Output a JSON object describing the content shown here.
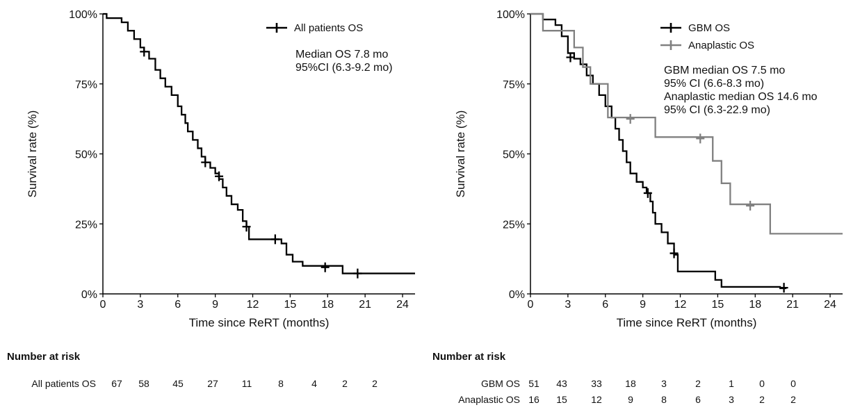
{
  "chart_data": [
    {
      "type": "line",
      "ylabel": "Survival rate (%)",
      "xlabel": "Time since ReRT (months)",
      "xlim": [
        0,
        25
      ],
      "ylim": [
        0,
        100
      ],
      "x_ticks": [
        "0",
        "3",
        "6",
        "9",
        "12",
        "15",
        "18",
        "21",
        "24"
      ],
      "y_ticks": [
        "0%",
        "25%",
        "50%",
        "75%",
        "100%"
      ],
      "legend_position": "top-right",
      "annotation": [
        "Median OS 7.8 mo",
        "95%CI (6.3-9.2 mo)"
      ],
      "series": [
        {
          "name": "All patients OS",
          "color": "#000000",
          "step_points": [
            [
              0,
              100
            ],
            [
              0.3,
              98.5
            ],
            [
              1.5,
              97
            ],
            [
              2,
              94
            ],
            [
              2.5,
              91
            ],
            [
              3,
              88
            ],
            [
              3.3,
              86.5
            ],
            [
              3.7,
              84
            ],
            [
              4.2,
              80
            ],
            [
              4.6,
              77
            ],
            [
              5,
              74
            ],
            [
              5.5,
              71
            ],
            [
              6,
              67
            ],
            [
              6.3,
              64
            ],
            [
              6.6,
              61
            ],
            [
              6.8,
              58
            ],
            [
              7.2,
              55
            ],
            [
              7.6,
              52
            ],
            [
              7.9,
              49
            ],
            [
              8.2,
              47
            ],
            [
              8.6,
              45
            ],
            [
              9,
              43
            ],
            [
              9.3,
              41
            ],
            [
              9.6,
              38
            ],
            [
              9.9,
              35
            ],
            [
              10.3,
              32
            ],
            [
              10.8,
              30
            ],
            [
              11.2,
              26
            ],
            [
              11.5,
              24
            ],
            [
              11.7,
              19.5
            ],
            [
              14.3,
              18
            ],
            [
              14.7,
              14
            ],
            [
              15.2,
              11.5
            ],
            [
              16,
              10
            ],
            [
              19.2,
              7.3
            ],
            [
              25,
              7.3
            ]
          ],
          "censor_points": [
            [
              3.3,
              86.5
            ],
            [
              8.2,
              47
            ],
            [
              9.3,
              42
            ],
            [
              11.5,
              24
            ],
            [
              13.8,
              19.5
            ],
            [
              17.8,
              9.5
            ],
            [
              20.4,
              7.3
            ]
          ]
        }
      ],
      "number_at_risk": {
        "title": "Number at risk",
        "rows": [
          {
            "label": "All patients OS",
            "values": [
              "67",
              "58",
              "45",
              "27",
              "11",
              "8",
              "4",
              "2",
              "2"
            ]
          }
        ]
      }
    },
    {
      "type": "line",
      "ylabel": "Survival rate (%)",
      "xlabel": "Time since ReRT (months)",
      "xlim": [
        0,
        25
      ],
      "ylim": [
        0,
        100
      ],
      "x_ticks": [
        "0",
        "3",
        "6",
        "9",
        "12",
        "15",
        "18",
        "21",
        "24"
      ],
      "y_ticks": [
        "0%",
        "25%",
        "50%",
        "75%",
        "100%"
      ],
      "legend_position": "top-right",
      "annotation": [
        "GBM median OS 7.5 mo",
        "95% CI (6.6-8.3 mo)",
        "Anaplastic median OS 14.6 mo",
        "95% CI (6.3-22.9 mo)"
      ],
      "series": [
        {
          "name": "GBM OS",
          "color": "#000000",
          "step_points": [
            [
              0,
              100
            ],
            [
              1,
              98
            ],
            [
              2,
              96
            ],
            [
              2.5,
              92
            ],
            [
              3,
              86
            ],
            [
              3.5,
              84
            ],
            [
              4,
              82
            ],
            [
              4.5,
              78
            ],
            [
              5,
              75
            ],
            [
              5.5,
              71
            ],
            [
              6,
              67
            ],
            [
              6.5,
              63
            ],
            [
              6.8,
              59
            ],
            [
              7.1,
              55
            ],
            [
              7.4,
              51
            ],
            [
              7.7,
              47
            ],
            [
              8,
              43
            ],
            [
              8.5,
              40
            ],
            [
              9,
              38
            ],
            [
              9.3,
              36
            ],
            [
              9.6,
              33
            ],
            [
              9.8,
              29
            ],
            [
              10,
              25
            ],
            [
              10.5,
              22
            ],
            [
              11,
              18
            ],
            [
              11.5,
              14
            ],
            [
              11.8,
              8
            ],
            [
              14.8,
              5
            ],
            [
              15.3,
              2.5
            ],
            [
              20,
              2
            ],
            [
              20.5,
              2
            ]
          ],
          "censor_points": [
            [
              3.2,
              84.5
            ],
            [
              9.4,
              36
            ],
            [
              11.5,
              14.5
            ],
            [
              20.3,
              2.2
            ]
          ]
        },
        {
          "name": "Anaplastic OS",
          "color": "#808080",
          "step_points": [
            [
              0,
              100
            ],
            [
              1,
              94
            ],
            [
              3.5,
              88
            ],
            [
              4.2,
              81
            ],
            [
              4.8,
              75
            ],
            [
              6.2,
              63
            ],
            [
              10,
              56
            ],
            [
              14.5,
              56
            ],
            [
              14.6,
              47.5
            ],
            [
              15.3,
              39.5
            ],
            [
              16,
              32
            ],
            [
              19.2,
              21.5
            ],
            [
              25,
              21.5
            ]
          ],
          "censor_points": [
            [
              8,
              62.5
            ],
            [
              13.6,
              55.5
            ],
            [
              17.6,
              31.5
            ]
          ]
        }
      ],
      "number_at_risk": {
        "title": "Number at risk",
        "rows": [
          {
            "label": "GBM OS",
            "values": [
              "51",
              "43",
              "33",
              "18",
              "3",
              "2",
              "1",
              "0",
              "0"
            ]
          },
          {
            "label": "Anaplastic OS",
            "values": [
              "16",
              "15",
              "12",
              "9",
              "8",
              "6",
              "3",
              "2",
              "2"
            ]
          }
        ]
      }
    }
  ]
}
